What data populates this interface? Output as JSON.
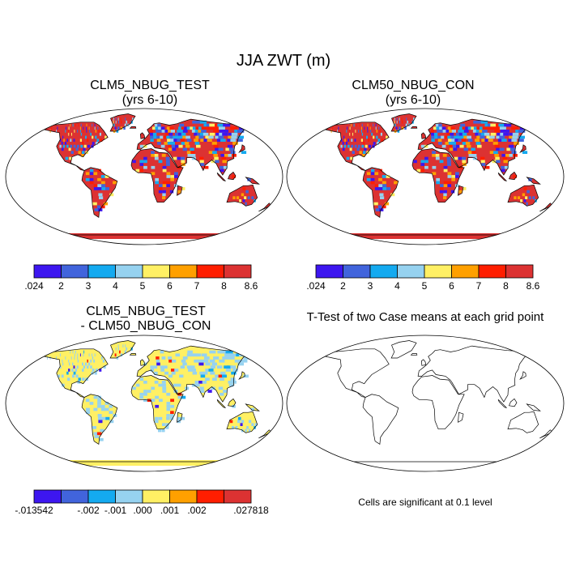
{
  "title": "JJA ZWT (m)",
  "colors": {
    "sequence": [
      "#3d16f0",
      "#4164dc",
      "#14aaf0",
      "#96d2f0",
      "#fff064",
      "#ffa000",
      "#ff1e00",
      "#dc3232"
    ],
    "land": "#dc3232",
    "diff_land": "#fff064",
    "outline": "#000000"
  },
  "panels": [
    {
      "title_line1": "CLM5_NBUG_TEST",
      "title_line2": "(yrs 6-10)",
      "colorbar_labels": [
        ".024",
        "2",
        "3",
        "4",
        "5",
        "6",
        "7",
        "8",
        "8.6"
      ]
    },
    {
      "title_line1": "CLM50_NBUG_CON",
      "title_line2": "(yrs 6-10)",
      "colorbar_labels": [
        ".024",
        "2",
        "3",
        "4",
        "5",
        "6",
        "7",
        "8",
        "8.6"
      ]
    },
    {
      "title_line1": "CLM5_NBUG_TEST",
      "title_line2": "- CLM50_NBUG_CON",
      "colorbar_labels": [
        "-.013542",
        "-.002",
        "-.001",
        ".000",
        ".001",
        ".002",
        ".027818"
      ]
    },
    {
      "title_line1": "T-Test of two Case means at each grid point",
      "note": "Cells are significant at 0.1 level"
    }
  ]
}
